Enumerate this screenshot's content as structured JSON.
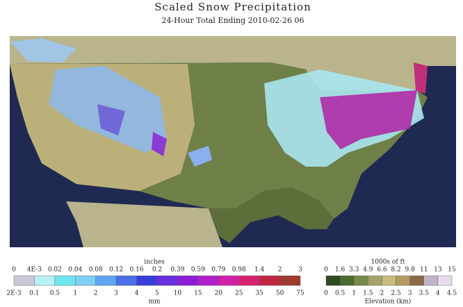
{
  "header": {
    "title": "Scaled Snow Precipitation",
    "subtitle": "24-Hour Total Ending 2010-02-26 06"
  },
  "snow_legend": {
    "top_label": "inches",
    "top_ticks": [
      "0",
      "4E-3",
      "0.02",
      "0.04",
      "0.08",
      "0.12",
      "0.16",
      "0.2",
      "0.39",
      "0.59",
      "0.79",
      "0.98",
      "1.4",
      "2",
      "3"
    ],
    "bottom_ticks": [
      "2E-3",
      "0.1",
      "0.5",
      "1",
      "2",
      "3",
      "4",
      "5",
      "10",
      "15",
      "20",
      "25",
      "35",
      "50",
      "75"
    ],
    "bottom_label": "mm"
  },
  "elevation_legend": {
    "top_label": "1000s of ft",
    "top_ticks": [
      "0",
      "1.6",
      "3.3",
      "4.9",
      "6.6",
      "8.2",
      "9.8",
      "11",
      "13",
      "15"
    ],
    "bottom_ticks": [
      "0",
      "0.5",
      "1",
      "1.5",
      "2",
      "2.5",
      "3",
      "3.5",
      "4",
      "4.5"
    ],
    "bottom_label": "Elevation (km)"
  }
}
